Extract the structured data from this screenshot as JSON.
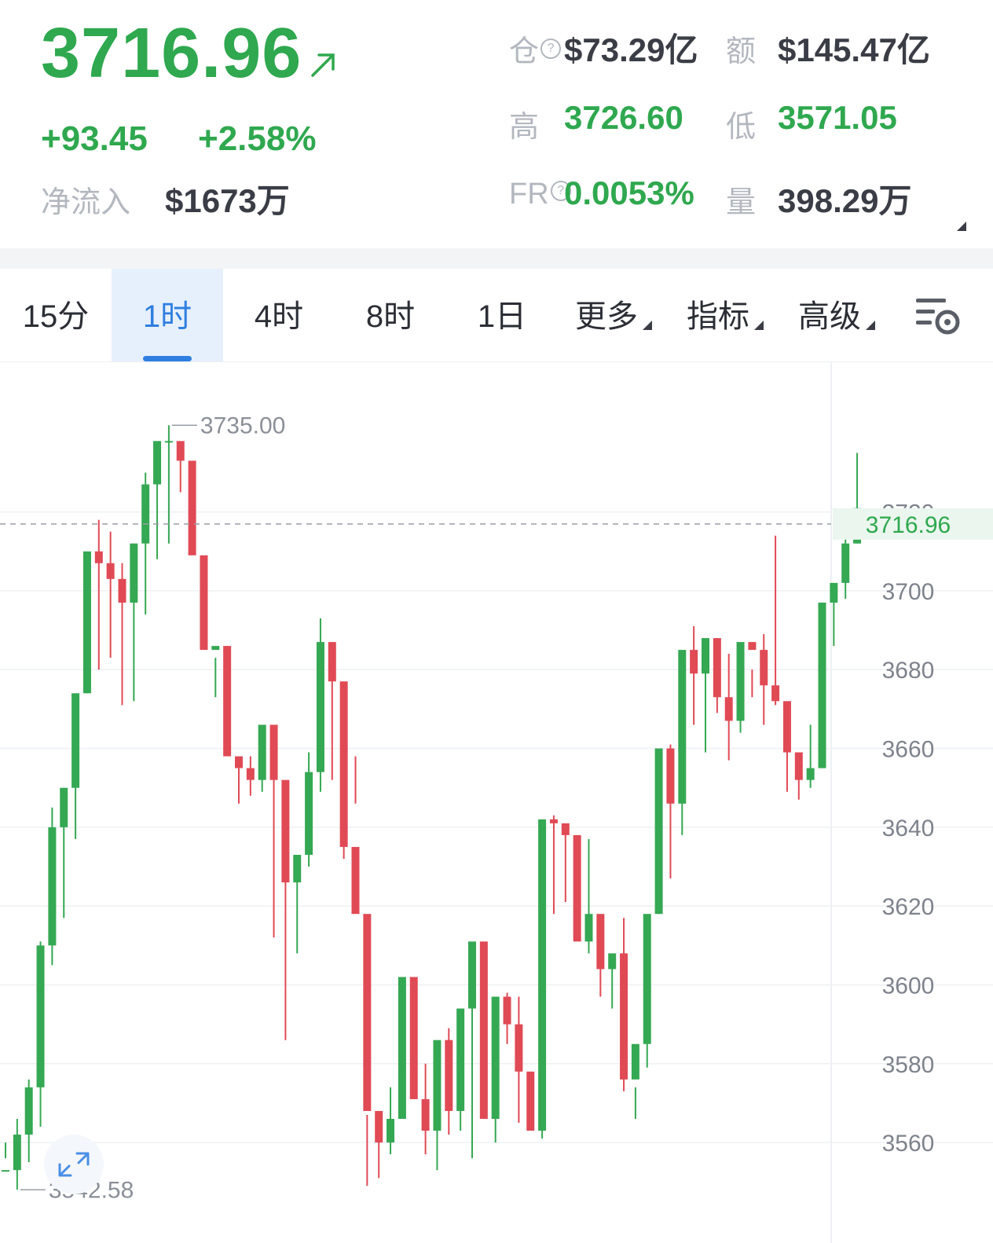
{
  "header": {
    "price": "3716.96",
    "change_abs": "+93.45",
    "change_pct": "+2.58%",
    "netflow_label": "净流入",
    "netflow_value": "$1673万",
    "oi_label": "仓",
    "oi_value": "$73.29亿",
    "turnover_label": "额",
    "turnover_value": "$145.47亿",
    "high_label": "高",
    "high_value": "3726.60",
    "low_label": "低",
    "low_value": "3571.05",
    "fr_label": "FR",
    "fr_value": "0.0053%",
    "vol_label": "量",
    "vol_value": "398.29万",
    "help_glyph": "?"
  },
  "tabs": {
    "t15m": "15分",
    "t1h": "1时",
    "t4h": "4时",
    "t8h": "8时",
    "t1d": "1日",
    "more": "更多",
    "indicators": "指标",
    "advanced": "高级",
    "settings_icon": "chart-settings-icon"
  },
  "colors": {
    "up": "#35a853",
    "down": "#e04a55",
    "accent": "#2f7fe0"
  },
  "chart_data": {
    "type": "candlestick",
    "interval": "1时",
    "current_price": "3716.96",
    "max_label": "3735.00",
    "min_label": "3542.58",
    "y_ticks": [
      "3700",
      "3680",
      "3660",
      "3640",
      "3620",
      "3600",
      "3580",
      "3560"
    ],
    "partial_tick": "3720",
    "ylim": [
      3534.5,
      3758
    ],
    "candles": [
      [
        3553,
        3560,
        3556,
        3553
      ],
      [
        3553,
        3566,
        3548,
        3562
      ],
      [
        3562,
        3576,
        3555,
        3574
      ],
      [
        3574,
        3611,
        3564,
        3610
      ],
      [
        3610,
        3645,
        3605,
        3640
      ],
      [
        3640,
        3650,
        3617,
        3650
      ],
      [
        3650,
        3654,
        3637,
        3674
      ],
      [
        3674,
        3700,
        3674,
        3710
      ],
      [
        3710,
        3718,
        3680,
        3707
      ],
      [
        3707,
        3715,
        3683,
        3703
      ],
      [
        3703,
        3707,
        3671,
        3697
      ],
      [
        3697,
        3712,
        3672,
        3712
      ],
      [
        3712,
        3730,
        3694,
        3727
      ],
      [
        3727,
        3733,
        3708,
        3738
      ],
      [
        3738,
        3742,
        3712,
        3738
      ],
      [
        3738,
        3737,
        3725,
        3733
      ],
      [
        3733,
        3721,
        3710,
        3709
      ],
      [
        3709,
        3700,
        3688,
        3685
      ],
      [
        3685,
        3683,
        3673,
        3686
      ],
      [
        3686,
        3686,
        3663,
        3658
      ],
      [
        3658,
        3655,
        3646,
        3655
      ],
      [
        3655,
        3658,
        3648,
        3652
      ],
      [
        3652,
        3666,
        3649,
        3666
      ],
      [
        3666,
        3654,
        3612,
        3652
      ],
      [
        3652,
        3646,
        3586,
        3626
      ],
      [
        3626,
        3631,
        3608,
        3633
      ],
      [
        3633,
        3659,
        3630,
        3654
      ],
      [
        3654,
        3693,
        3649,
        3687
      ],
      [
        3687,
        3685,
        3652,
        3677
      ],
      [
        3677,
        3657,
        3632,
        3635
      ],
      [
        3635,
        3658,
        3646,
        3618
      ],
      [
        3618,
        3567,
        3549,
        3568
      ],
      [
        3568,
        3566,
        3551,
        3560
      ],
      [
        3560,
        3574,
        3557,
        3566
      ],
      [
        3566,
        3593,
        3566,
        3602
      ],
      [
        3602,
        3584,
        3572,
        3571
      ],
      [
        3571,
        3580,
        3557,
        3563
      ],
      [
        3563,
        3568,
        3553,
        3586
      ],
      [
        3586,
        3589,
        3562,
        3568
      ],
      [
        3568,
        3593,
        3563,
        3594
      ],
      [
        3594,
        3607,
        3556,
        3611
      ],
      [
        3611,
        3583,
        3579,
        3566
      ],
      [
        3566,
        3592,
        3560,
        3597
      ],
      [
        3597,
        3598,
        3585,
        3590
      ],
      [
        3590,
        3597,
        3565,
        3578
      ],
      [
        3578,
        3568,
        3565,
        3563
      ],
      [
        3563,
        3642,
        3561,
        3642
      ],
      [
        3642,
        3643,
        3618,
        3641
      ],
      [
        3641,
        3640,
        3621,
        3638
      ],
      [
        3638,
        3618,
        3619,
        3611
      ],
      [
        3611,
        3637,
        3608,
        3618
      ],
      [
        3618,
        3611,
        3597,
        3604
      ],
      [
        3604,
        3605,
        3594,
        3608
      ],
      [
        3608,
        3617,
        3573,
        3576
      ],
      [
        3576,
        3574,
        3566,
        3585
      ],
      [
        3585,
        3613,
        3579,
        3618
      ],
      [
        3618,
        3653,
        3618,
        3660
      ],
      [
        3660,
        3661,
        3627,
        3646
      ],
      [
        3646,
        3669,
        3638,
        3685
      ],
      [
        3685,
        3691,
        3666,
        3679
      ],
      [
        3679,
        3680,
        3659,
        3688
      ],
      [
        3688,
        3681,
        3669,
        3673
      ],
      [
        3673,
        3684,
        3657,
        3667
      ],
      [
        3667,
        3677,
        3664,
        3687
      ],
      [
        3687,
        3680,
        3673,
        3685
      ],
      [
        3685,
        3689,
        3666,
        3676
      ],
      [
        3676,
        3714,
        3671,
        3672
      ],
      [
        3672,
        3672,
        3649,
        3659
      ],
      [
        3659,
        3658,
        3647,
        3652
      ],
      [
        3652,
        3666,
        3650,
        3655
      ],
      [
        3655,
        3693,
        3655,
        3697
      ],
      [
        3697,
        3697,
        3686,
        3702
      ],
      [
        3702,
        3718,
        3698,
        3712
      ],
      [
        3712,
        3735,
        3712,
        3721
      ]
    ]
  }
}
